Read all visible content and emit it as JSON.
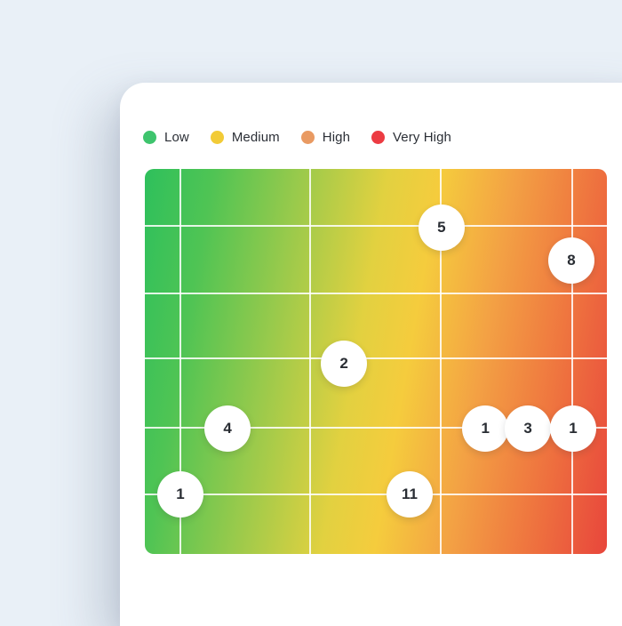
{
  "page": {
    "background": "#E9F0F7",
    "card_background": "#FFFFFF"
  },
  "legend": {
    "items": [
      {
        "label": "Low",
        "color": "#3EC46D",
        "icon": "legend-marker-circle"
      },
      {
        "label": "Medium",
        "color": "#F2CB37",
        "icon": "legend-marker-circle"
      },
      {
        "label": "High",
        "color": "#E99A62",
        "icon": "legend-marker-circle"
      },
      {
        "label": "Very High",
        "color": "#EC3B42",
        "icon": "legend-marker-circle"
      }
    ]
  },
  "chart_data": {
    "type": "scatter",
    "variant": "risk-matrix-bubble-heatmap",
    "title": "",
    "xlabel": "",
    "ylabel": "",
    "legend_position": "top",
    "axis_tick_labels_visible": false,
    "grid": {
      "show": true,
      "line_color": "#FFFFFF",
      "vertical_lines_pct": [
        7.7,
        35.8,
        64.0,
        92.5
      ],
      "horizontal_lines_pct": [
        14.8,
        32.4,
        49.3,
        67.1,
        84.5
      ]
    },
    "background_gradient": {
      "angle_deg": 100,
      "stops": [
        {
          "color": "#2EC05C",
          "pos": 0
        },
        {
          "color": "#4FC454",
          "pos": 13
        },
        {
          "color": "#9CCA4B",
          "pos": 30
        },
        {
          "color": "#E2D140",
          "pos": 46
        },
        {
          "color": "#F5CC3D",
          "pos": 56
        },
        {
          "color": "#F3A144",
          "pos": 70
        },
        {
          "color": "#EF773F",
          "pos": 84
        },
        {
          "color": "#E8463C",
          "pos": 100
        }
      ]
    },
    "points": [
      {
        "value": "5",
        "x_pct": 64.2,
        "y_pct": 15.3
      },
      {
        "value": "8",
        "x_pct": 92.3,
        "y_pct": 23.8
      },
      {
        "value": "2",
        "x_pct": 43.1,
        "y_pct": 50.5
      },
      {
        "value": "4",
        "x_pct": 17.9,
        "y_pct": 67.4
      },
      {
        "value": "1",
        "x_pct": 7.7,
        "y_pct": 84.5
      },
      {
        "value": "1",
        "x_pct": 73.7,
        "y_pct": 67.4
      },
      {
        "value": "3",
        "x_pct": 82.9,
        "y_pct": 67.4
      },
      {
        "value": "1",
        "x_pct": 92.7,
        "y_pct": 67.4
      },
      {
        "value": "11",
        "x_pct": 57.3,
        "y_pct": 84.5
      }
    ]
  }
}
